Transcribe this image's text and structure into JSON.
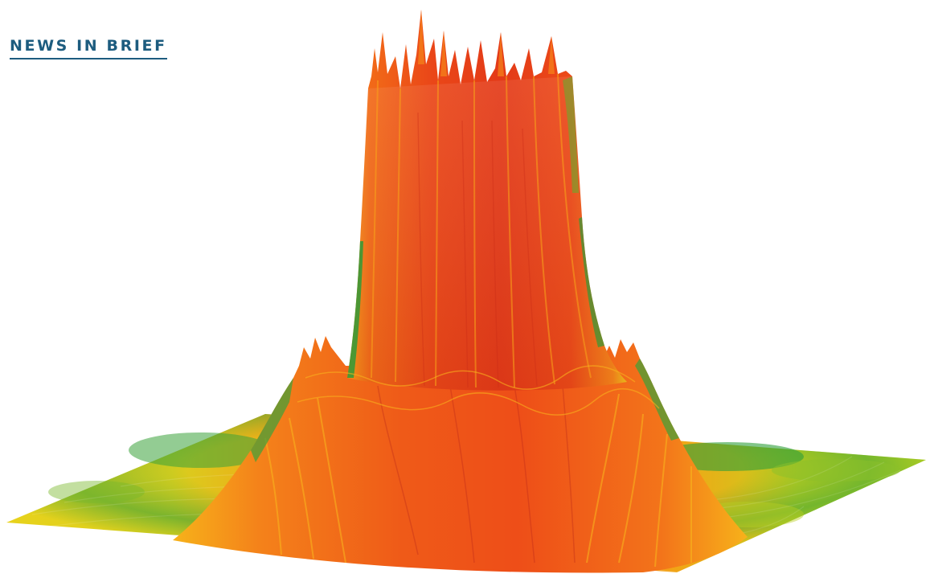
{
  "header": {
    "section_label": "NEWS IN BRIEF"
  },
  "figure": {
    "subject": "surface-plot",
    "colors": {
      "low": "#2e9e3a",
      "mid_low": "#b9d41f",
      "mid": "#f2d31a",
      "mid_high": "#f39a12",
      "high": "#f0501a",
      "peak": "#e2361a",
      "background": "#ffffff",
      "accent": "#1d5c7f"
    }
  }
}
